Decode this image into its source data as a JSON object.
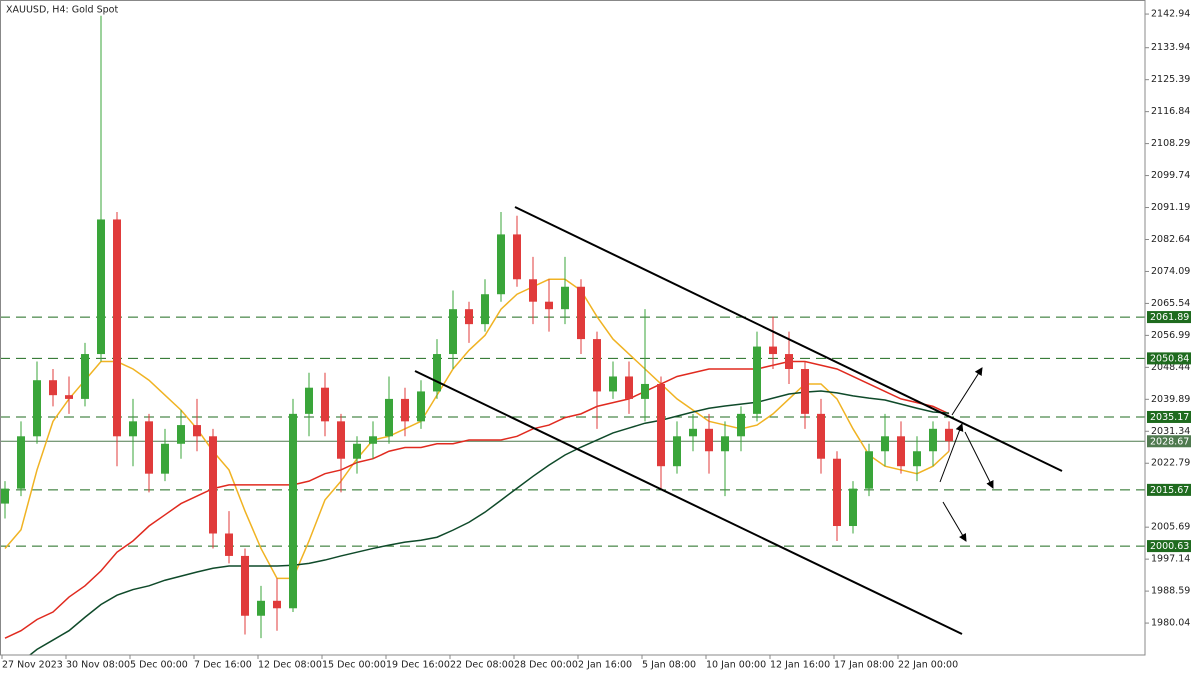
{
  "chart_data": {
    "type": "candlestick",
    "title": "XAUUSD, H4:  Gold Spot",
    "categories": [
      "27 Nov 2023",
      null,
      null,
      null,
      "30 Nov 08:00",
      null,
      null,
      null,
      "5 Dec 00:00",
      null,
      null,
      null,
      "7 Dec 16:00",
      null,
      null,
      null,
      "12 Dec 08:00",
      null,
      null,
      null,
      "15 Dec 00:00",
      null,
      null,
      null,
      "19 Dec 16:00",
      null,
      null,
      null,
      "22 Dec 08:00",
      null,
      null,
      null,
      "28 Dec 00:00",
      null,
      null,
      null,
      "2 Jan 16:00",
      null,
      null,
      null,
      "5 Jan 08:00",
      null,
      null,
      null,
      "10 Jan 00:00",
      null,
      null,
      null,
      "12 Jan 16:00",
      null,
      null,
      null,
      "17 Jan 08:00",
      null,
      null,
      null,
      "22 Jan 00:00",
      null,
      null,
      null
    ],
    "open": [
      2012,
      2016,
      2030,
      2045,
      2041,
      2040,
      2052,
      2088,
      2030,
      2034,
      2020,
      2028,
      2033,
      2030,
      2004,
      1998,
      1982,
      1986,
      1984,
      2036,
      2043,
      2034,
      2024,
      2028,
      2030,
      2040,
      2034,
      2042,
      2052,
      2064,
      2060,
      2068,
      2084,
      2072,
      2066,
      2064,
      2070,
      2056,
      2042,
      2046,
      2040,
      2044,
      2022,
      2030,
      2032,
      2026,
      2030,
      2036,
      2054,
      2052,
      2048,
      2036,
      2024,
      2006,
      2016,
      2026,
      2030,
      2022,
      2026,
      2032
    ],
    "high": [
      2018,
      2034,
      2050,
      2048,
      2046,
      2055,
      2142.5,
      2090,
      2040,
      2036,
      2032,
      2037,
      2040,
      2032,
      2010,
      2000,
      1990,
      1992,
      2040,
      2047,
      2047,
      2036,
      2030,
      2034,
      2046,
      2043,
      2045,
      2056,
      2069,
      2066,
      2072,
      2090,
      2089,
      2078,
      2072,
      2078,
      2072,
      2058,
      2050,
      2050,
      2064,
      2046,
      2034,
      2036,
      2036,
      2034,
      2038,
      2058,
      2062,
      2058,
      2050,
      2040,
      2026,
      2018,
      2028,
      2036,
      2034,
      2030,
      2034,
      2034
    ],
    "low": [
      2008,
      2014,
      2028,
      2038,
      2036,
      2038,
      2050,
      2022,
      2022,
      2015,
      2018,
      2024,
      2026,
      2000,
      1996,
      1977,
      1976,
      1978,
      1983,
      2030,
      2030,
      2015,
      2020,
      2024,
      2028,
      2030,
      2032,
      2040,
      2048,
      2055,
      2058,
      2066,
      2070,
      2060,
      2058,
      2060,
      2052,
      2032,
      2040,
      2036,
      2034,
      2016,
      2020,
      2026,
      2020,
      2014,
      2026,
      2034,
      2048,
      2044,
      2032,
      2020,
      2002,
      2004,
      2014,
      2022,
      2020,
      2018,
      2022,
      2026
    ],
    "close": [
      2016,
      2030,
      2045,
      2041,
      2040,
      2052,
      2088,
      2030,
      2034,
      2020,
      2028,
      2033,
      2030,
      2004,
      1998,
      1982,
      1986,
      1984,
      2036,
      2043,
      2034,
      2024,
      2028,
      2030,
      2040,
      2034,
      2042,
      2052,
      2064,
      2060,
      2068,
      2084,
      2072,
      2066,
      2064,
      2070,
      2056,
      2042,
      2046,
      2040,
      2044,
      2022,
      2030,
      2032,
      2026,
      2030,
      2036,
      2054,
      2052,
      2048,
      2036,
      2024,
      2006,
      2016,
      2026,
      2030,
      2022,
      2026,
      2032,
      2028.67
    ],
    "up_color": "#3aa53a",
    "down_color": "#e03b3b",
    "overlays": [
      {
        "color": "#f0b323",
        "values": [
          2000,
          2005,
          2021,
          2034,
          2040,
          2045,
          2050,
          2050,
          2048,
          2045,
          2041,
          2037,
          2032,
          2026,
          2021,
          2010,
          2000,
          1992,
          1992,
          2002,
          2013,
          2018,
          2024,
          2029,
          2030,
          2032,
          2034,
          2041,
          2048,
          2053,
          2057,
          2064,
          2068,
          2070,
          2072,
          2072,
          2069,
          2062,
          2056,
          2052,
          2048,
          2044,
          2040,
          2037,
          2034,
          2033,
          2032,
          2033,
          2036,
          2040,
          2044,
          2044,
          2040,
          2032,
          2025,
          2022,
          2021,
          2020,
          2022,
          2026
        ]
      },
      {
        "color": "#e02a1f",
        "values": [
          1976,
          1978,
          1981,
          1983,
          1987,
          1990,
          1994,
          1999,
          2002,
          2006,
          2009,
          2012,
          2014,
          2016,
          2017,
          2017,
          2017,
          2017,
          2017,
          2018,
          2020,
          2021,
          2023,
          2024,
          2026,
          2027,
          2027,
          2028,
          2028,
          2029,
          2029,
          2029,
          2030,
          2032,
          2033,
          2035,
          2036,
          2038,
          2039,
          2040,
          2042,
          2044,
          2046,
          2047,
          2048,
          2048,
          2048,
          2048,
          2049,
          2050,
          2050,
          2049,
          2048,
          2046,
          2044,
          2042,
          2040,
          2039,
          2038,
          2036
        ]
      },
      {
        "color": "#0f4a2a",
        "values": [
          1967.5,
          1969.6,
          1973,
          1975.5,
          1978,
          1981.6,
          1985,
          1987.5,
          1989,
          1990,
          1991.5,
          1992.6,
          1993.7,
          1994.7,
          1995.3,
          1995.3,
          1995.3,
          1995.3,
          1995.5,
          1996,
          1996.9,
          1998,
          1999,
          2000,
          2000.9,
          2001.7,
          2002.2,
          2003,
          2004.9,
          2007,
          2009.7,
          2012.9,
          2016.1,
          2019.3,
          2022.3,
          2025,
          2027.1,
          2029,
          2030.9,
          2032.2,
          2033.5,
          2034.3,
          2035.4,
          2036.5,
          2037.5,
          2038.1,
          2038.6,
          2039.1,
          2040.2,
          2041.3,
          2041.8,
          2042.1,
          2041.6,
          2040.8,
          2040.2,
          2039.7,
          2038.6,
          2037.5,
          2036.5,
          2036.2
        ]
      }
    ],
    "levels": [
      2061.89,
      2050.84,
      2035.17,
      2015.67,
      2000.63
    ],
    "level_color": "#1f6b1f",
    "last_price": 2028.67,
    "last_price_color": "#4f7a4f",
    "ylim": [
      1971.5,
      2146.7
    ],
    "yticks": [
      2142.94,
      2133.94,
      2125.39,
      2116.84,
      2108.29,
      2099.74,
      2091.19,
      2082.64,
      2074.09,
      2065.54,
      2056.99,
      2048.44,
      2039.89,
      2031.34,
      2022.79,
      2005.69,
      1997.14,
      1988.59,
      1980.04
    ]
  }
}
